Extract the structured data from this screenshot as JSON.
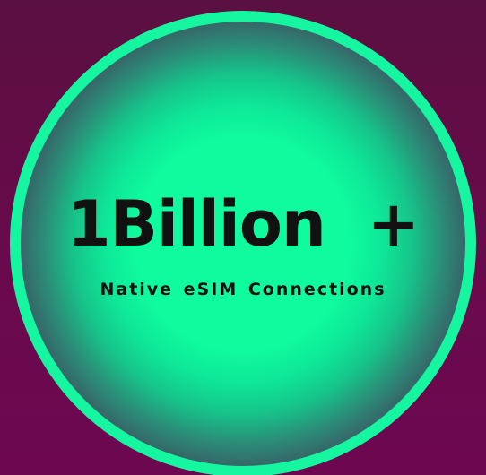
{
  "badge": {
    "headline": "1Billion  +",
    "subline": "Native eSIM Connections"
  },
  "colors": {
    "background": "#6a0a4c",
    "ring": "#16f5a0",
    "disc_center": "#0ffb9e",
    "disc_edge": "#3a5a64",
    "text": "#111111"
  }
}
